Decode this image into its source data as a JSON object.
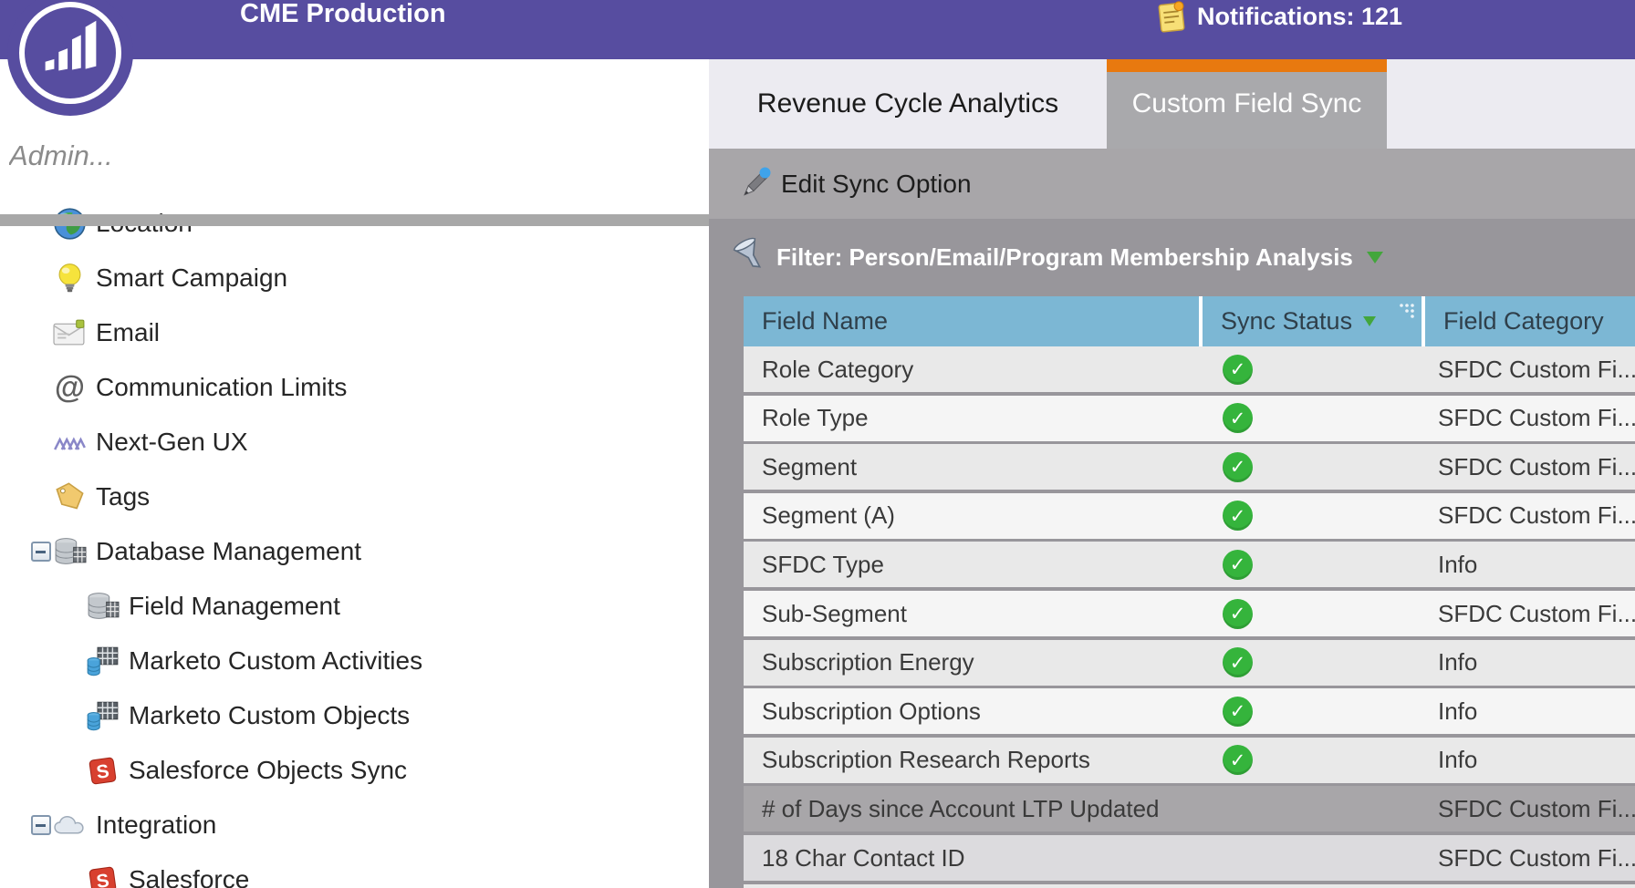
{
  "colors": {
    "header_purple": "#574da0",
    "accent_orange": "#e8790f",
    "table_header_blue": "#7cb7d4",
    "check_green": "#35b43c",
    "toolbar_gray": "#a8a6a9",
    "filter_gray": "#98969b",
    "row_stripe_dark": "#e9e9e9",
    "row_stripe_light": "#f5f5f5",
    "row_muted_dark": "#a8a6a9",
    "row_muted_light": "#dcdbde"
  },
  "header": {
    "title": "CME Production",
    "notifications": "Notifications: 121"
  },
  "sidebar": {
    "search_placeholder": "Admin...",
    "tree": [
      {
        "label": "Location",
        "icon": "globe",
        "indent": 0,
        "expander": false
      },
      {
        "label": "Smart Campaign",
        "icon": "lightbulb",
        "indent": 0,
        "expander": false
      },
      {
        "label": "Email",
        "icon": "envelope",
        "indent": 0,
        "expander": false
      },
      {
        "label": "Communication Limits",
        "icon": "at-sign",
        "indent": 0,
        "expander": false
      },
      {
        "label": "Next-Gen UX",
        "icon": "zigzag",
        "indent": 0,
        "expander": false
      },
      {
        "label": "Tags",
        "icon": "tag",
        "indent": 0,
        "expander": false
      },
      {
        "label": "Database Management",
        "icon": "database",
        "indent": 0,
        "expander": true
      },
      {
        "label": "Field Management",
        "icon": "database",
        "indent": 1,
        "expander": false
      },
      {
        "label": "Marketo Custom Activities",
        "icon": "table-blue",
        "indent": 1,
        "expander": false
      },
      {
        "label": "Marketo Custom Objects",
        "icon": "table-blue",
        "indent": 1,
        "expander": false
      },
      {
        "label": "Salesforce Objects Sync",
        "icon": "salesforce",
        "indent": 1,
        "expander": false
      },
      {
        "label": "Integration",
        "icon": "cloud",
        "indent": 0,
        "expander": true
      },
      {
        "label": "Salesforce",
        "icon": "salesforce",
        "indent": 1,
        "expander": false
      }
    ]
  },
  "tabs": [
    {
      "label": "Revenue Cycle Analytics",
      "active": false
    },
    {
      "label": "Custom Field Sync",
      "active": true
    }
  ],
  "toolbar": {
    "edit_sync_option": "Edit Sync Option"
  },
  "filter": {
    "label": "Filter: Person/Email/Program Membership Analysis"
  },
  "table": {
    "columns": [
      "Field Name",
      "Sync Status",
      "Field Category"
    ],
    "rows": [
      {
        "field_name": "Role Category",
        "synced": true,
        "field_category": "SFDC Custom Fi...",
        "tone": "stripe-dark"
      },
      {
        "field_name": "Role Type",
        "synced": true,
        "field_category": "SFDC Custom Fi...",
        "tone": "stripe-light"
      },
      {
        "field_name": "Segment",
        "synced": true,
        "field_category": "SFDC Custom Fi...",
        "tone": "stripe-dark"
      },
      {
        "field_name": "Segment (A)",
        "synced": true,
        "field_category": "SFDC Custom Fi...",
        "tone": "stripe-light"
      },
      {
        "field_name": "SFDC Type",
        "synced": true,
        "field_category": "Info",
        "tone": "stripe-dark"
      },
      {
        "field_name": "Sub-Segment",
        "synced": true,
        "field_category": "SFDC Custom Fi...",
        "tone": "stripe-light"
      },
      {
        "field_name": "Subscription Energy",
        "synced": true,
        "field_category": "Info",
        "tone": "stripe-dark"
      },
      {
        "field_name": "Subscription Options",
        "synced": true,
        "field_category": "Info",
        "tone": "stripe-light"
      },
      {
        "field_name": "Subscription Research Reports",
        "synced": true,
        "field_category": "Info",
        "tone": "stripe-dark"
      },
      {
        "field_name": "# of Days since Account LTP Updated",
        "synced": false,
        "field_category": "SFDC Custom Fi...",
        "tone": "muted-dark"
      },
      {
        "field_name": "18 Char Contact ID",
        "synced": false,
        "field_category": "SFDC Custom Fi...",
        "tone": "muted-light"
      },
      {
        "field_name": "",
        "synced": false,
        "field_category": "",
        "tone": "stub"
      }
    ]
  }
}
